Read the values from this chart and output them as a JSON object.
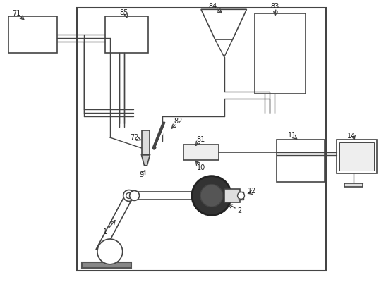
{
  "bg_color": "#ffffff",
  "lc": "#444444",
  "lw": 1.0,
  "fig_width": 5.47,
  "fig_height": 4.0,
  "dpi": 100
}
